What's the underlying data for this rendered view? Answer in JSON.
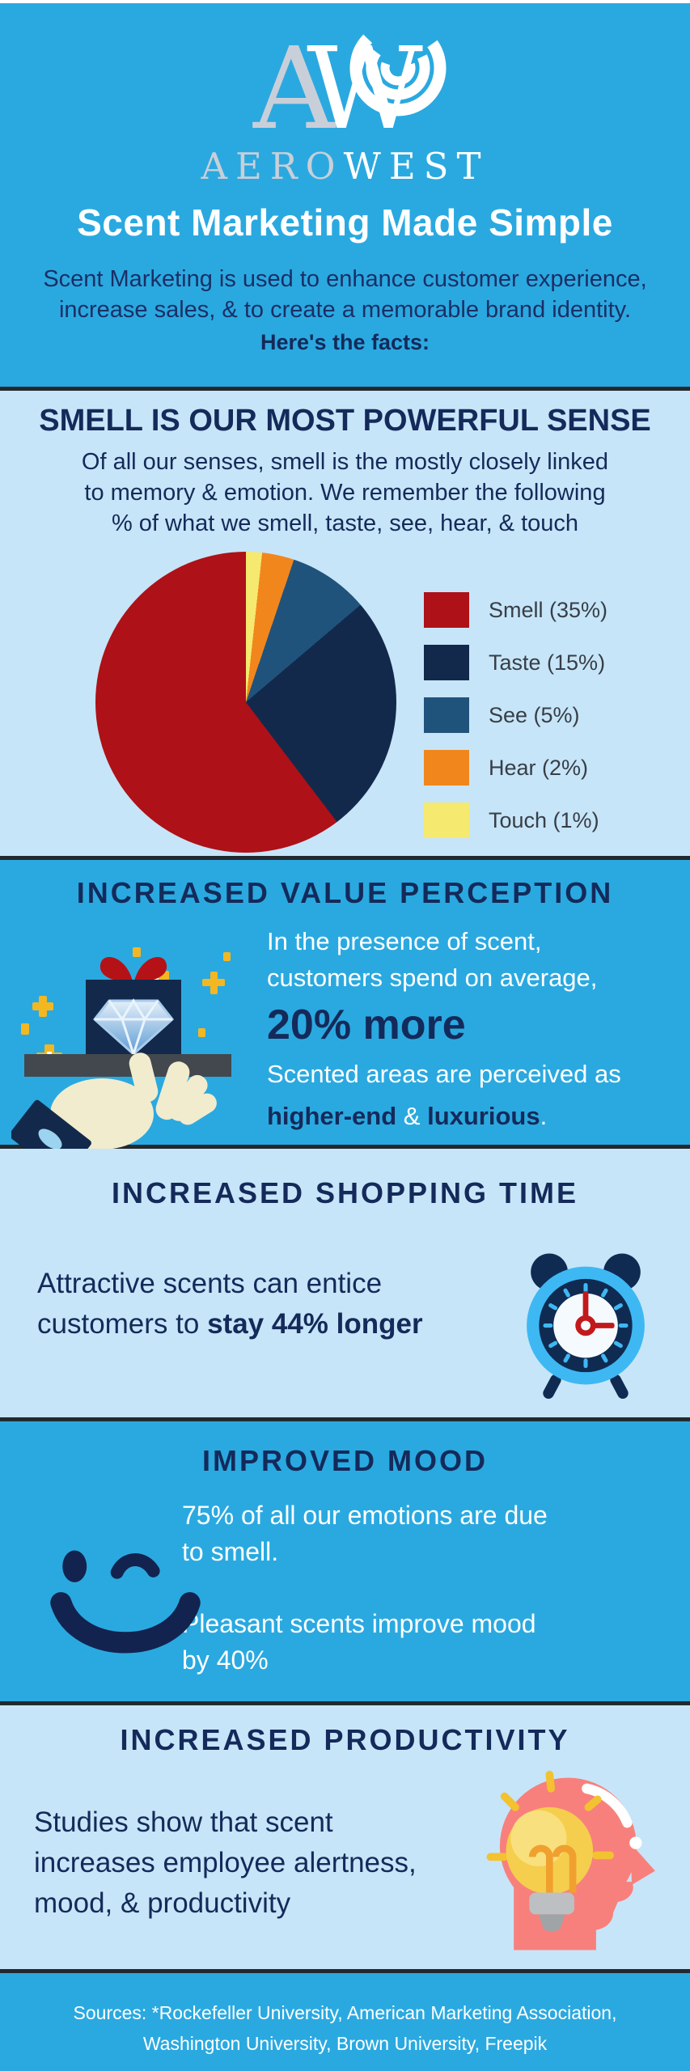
{
  "brand": {
    "name": "AEROWEST",
    "monogram": "AW",
    "wordmark_left": "AERO",
    "wordmark_right": "WEST"
  },
  "header": {
    "title": "Scent Marketing Made Simple",
    "intro_line1": "Scent Marketing is used to enhance customer experience,",
    "intro_line2": "increase sales, & to create a memorable brand identity.",
    "intro_bold": "Here's the facts:"
  },
  "sections": {
    "smell": {
      "heading": "SMELL IS OUR MOST POWERFUL SENSE",
      "body_line1": "Of all our senses, smell is the mostly closely linked",
      "body_line2": "to memory & emotion. We remember the following",
      "body_line3": "% of what we smell, taste, see, hear, & touch"
    },
    "value": {
      "heading": "INCREASED VALUE PERCEPTION",
      "line1": "In the presence of scent,",
      "line2": "customers spend on average,",
      "stat": "20% more",
      "line3": "Scented areas are perceived as",
      "bold1": "higher-end",
      "amp": " & ",
      "bold2": "luxurious",
      "period": "."
    },
    "shopping": {
      "heading": "INCREASED SHOPPING TIME",
      "line1": "Attractive scents can entice",
      "line2_prefix": "customers to ",
      "line2_bold": "stay 44% longer"
    },
    "mood": {
      "heading": "IMPROVED MOOD",
      "line1a": "75% of all our emotions are due",
      "line1b": "to smell.",
      "line2a": "Pleasant scents improve mood",
      "line2b": "by 40%"
    },
    "productivity": {
      "heading": "INCREASED PRODUCTIVITY",
      "line1": "Studies show that scent",
      "line2": "increases employee alertness,",
      "line3": "mood, & productivity"
    }
  },
  "footer": {
    "sources_line1": "Sources: *Rockefeller University, American Marketing Association,",
    "sources_line2": "Washington University, Brown University, Freepik"
  },
  "chart_data": {
    "type": "pie",
    "title": "",
    "labels": [
      "Smell (35%)",
      "Taste (15%)",
      "See (5%)",
      "Hear (2%)",
      "Touch (1%)"
    ],
    "values": [
      35,
      15,
      5,
      2,
      1
    ],
    "colors": [
      "#AE1117",
      "#13294B",
      "#20537B",
      "#F1861D",
      "#F5E96F"
    ],
    "start": "12-o'clock",
    "direction": "clockwise, smallest slice first (Touch, Hear, See, Taste, Smell)",
    "legend_position": "right"
  },
  "icons": {
    "logo": "aerowest-swirl-monogram",
    "value": "hand-holding-gift-with-diamond",
    "shopping": "alarm-clock",
    "mood": "winking-smiley-face",
    "productivity": "head-profile-with-lightbulb"
  },
  "colors": {
    "bright_blue": "#2AA9E0",
    "light_blue": "#C7E5F8",
    "navy": "#142A5A",
    "intro_navy": "#1B2F66",
    "divider": "#22292E",
    "legend_text": "#373E46",
    "white": "#FFFFFF"
  }
}
